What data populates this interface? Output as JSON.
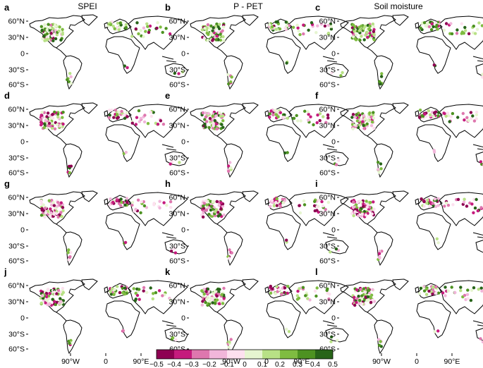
{
  "column_titles": [
    "SPEI",
    "P - PET",
    "Soil moisture"
  ],
  "panel_labels": [
    "a",
    "b",
    "c",
    "d",
    "e",
    "f",
    "g",
    "h",
    "i",
    "j",
    "k",
    "l"
  ],
  "y_ticks": [
    "60°N",
    "30°N",
    "0",
    "30°S",
    "60°S"
  ],
  "x_ticks": [
    "90°W",
    "0",
    "90°E"
  ],
  "colorbar": {
    "ticks": [
      "−0.5",
      "−0.4",
      "−0.3",
      "−0.2",
      "−0.1",
      "0",
      "0.1",
      "0.2",
      "0.3",
      "0.4",
      "0.5"
    ],
    "colors": [
      "#8e0152",
      "#c51b7d",
      "#de77ae",
      "#f1b6da",
      "#fde0ef",
      "#e6f5d0",
      "#b8e186",
      "#7fbc41",
      "#4d9221",
      "#276419"
    ]
  }
}
